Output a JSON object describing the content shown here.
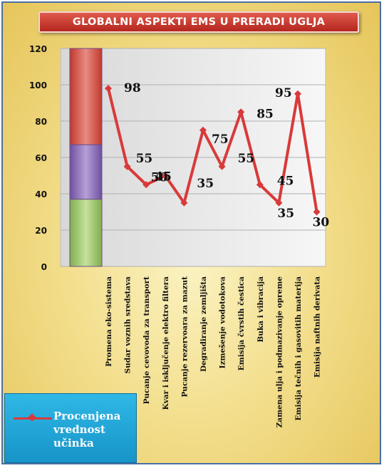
{
  "title": "GLOBALNI ASPEKTI EMS U PRERADI UGLJA",
  "colors": {
    "series": "#d83a3a",
    "band_red": "#d9534f",
    "band_purple": "#8a6bb8",
    "band_green": "#9bc56b",
    "title_bg": "#c8362b",
    "legend_bg": "#2ab0e0"
  },
  "legend": {
    "label": "Procenjena vrednost učinka",
    "position": "bottom-left"
  },
  "chart_data": {
    "type": "line",
    "title": "GLOBALNI ASPEKTI EMS U PRERADI UGLJA",
    "categories": [
      "Promena eko-sistema",
      "Sudar voznih sredstava",
      "Pucanje cevovoda za transport",
      "Kvar i isključenje elektro filtera",
      "Pucanje rezervoara za mazut",
      "Degradiranje zemljišta",
      "Izmešenje vodotokova",
      "Emisija čvrstih čestica",
      "Buka i vibracija",
      "Zamena ulja i podmazivanje opreme",
      "Emisija tečnih i gasovitih materija",
      "Emisija naftnih derivata"
    ],
    "series": [
      {
        "name": "Procenjena vrednost učinka",
        "values": [
          98,
          55,
          45,
          50,
          35,
          75,
          55,
          85,
          45,
          35,
          95,
          30
        ]
      }
    ],
    "data_labels": [
      "98",
      "55",
      "45",
      "50",
      "35",
      "75",
      "55",
      "85",
      "45",
      "35",
      "95",
      "30"
    ],
    "y_ticks": [
      "0",
      "20",
      "40",
      "60",
      "80",
      "100",
      "120"
    ],
    "ylim": [
      0,
      120
    ],
    "bands": [
      {
        "from": 0,
        "to": 37,
        "color": "#9bc56b"
      },
      {
        "from": 37,
        "to": 67,
        "color": "#8a6bb8"
      },
      {
        "from": 67,
        "to": 120,
        "color": "#d9534f"
      }
    ],
    "grid": true
  }
}
